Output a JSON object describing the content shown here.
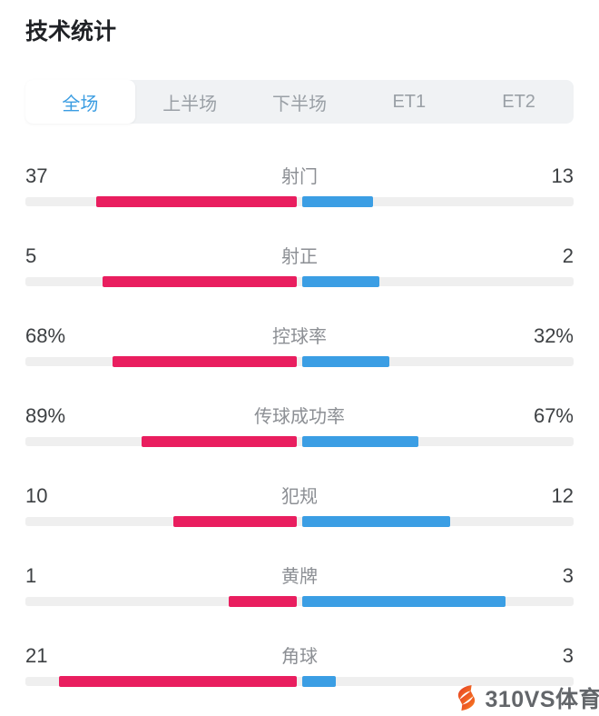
{
  "title": "技术统计",
  "tabs": [
    {
      "label": "全场",
      "active": true
    },
    {
      "label": "上半场",
      "active": false
    },
    {
      "label": "下半场",
      "active": false
    },
    {
      "label": "ET1",
      "active": false
    },
    {
      "label": "ET2",
      "active": false
    }
  ],
  "stats": [
    {
      "label": "射门",
      "left_display": "37",
      "right_display": "13",
      "left_value": 37,
      "right_value": 13
    },
    {
      "label": "射正",
      "left_display": "5",
      "right_display": "2",
      "left_value": 5,
      "right_value": 2
    },
    {
      "label": "控球率",
      "left_display": "68%",
      "right_display": "32%",
      "left_value": 68,
      "right_value": 32
    },
    {
      "label": "传球成功率",
      "left_display": "89%",
      "right_display": "67%",
      "left_value": 89,
      "right_value": 67
    },
    {
      "label": "犯规",
      "left_display": "10",
      "right_display": "12",
      "left_value": 10,
      "right_value": 12
    },
    {
      "label": "黄牌",
      "left_display": "1",
      "right_display": "3",
      "left_value": 1,
      "right_value": 3
    },
    {
      "label": "角球",
      "left_display": "21",
      "right_display": "3",
      "left_value": 21,
      "right_value": 3
    }
  ],
  "colors": {
    "home": "#E91E5F",
    "away": "#3B9EE4",
    "track": "#EFEFEF",
    "tab_active": "#3B9DE2"
  },
  "watermark": {
    "icon": "310vs-lightning-icon",
    "icon_colors": [
      "#E23128",
      "#FB8A1E"
    ],
    "text": "310VS体育"
  }
}
